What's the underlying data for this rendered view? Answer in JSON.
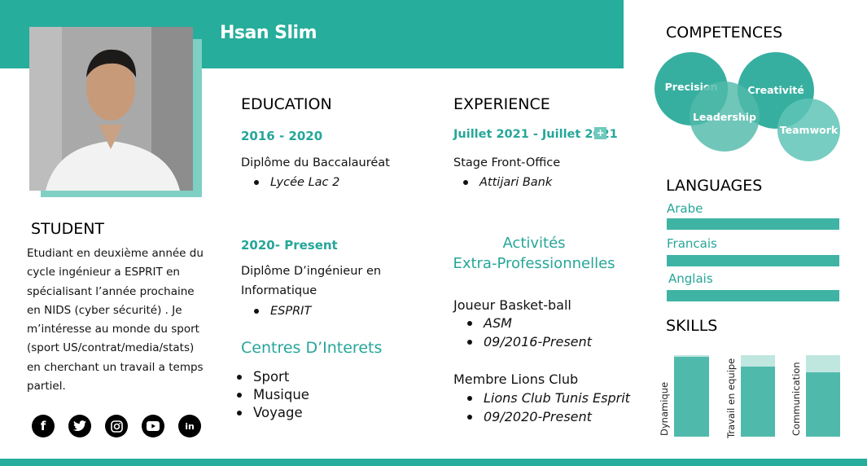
{
  "header": {
    "name": "Hsan Slim"
  },
  "left": {
    "title": "STUDENT",
    "bio": [
      "Etudiant en deuxième année du",
      "cycle ingénieur a ESPRIT en",
      "spécialisant l’année prochaine",
      "en NIDS (cyber sécurité) . Je",
      "m’intéresse au monde du sport",
      "(sport US/contrat/media/stats)",
      "en cherchant un travail a temps",
      "partiel."
    ],
    "social": {
      "facebook": "f",
      "linkedin": "in"
    }
  },
  "education": {
    "title": "EDUCATION",
    "items": [
      {
        "period": "2016 - 2020",
        "degree": [
          "Diplôme du Baccalauréat"
        ],
        "place": "Lycée Lac 2"
      },
      {
        "period": "2020- Present",
        "degree": [
          "Diplôme D’ingénieur en",
          "Informatique"
        ],
        "place": "ESPRIT"
      }
    ]
  },
  "interests": {
    "title": "Centres D’Interets",
    "items": [
      "Sport",
      "Musique",
      "Voyage"
    ]
  },
  "experience": {
    "title": "EXPERIENCE",
    "period": "Juillet 2021 - Juillet 2021",
    "plus_icon": "+",
    "job": "Stage Front-Office",
    "company": "Attijari Bank"
  },
  "activities": {
    "title": [
      "Activités",
      "Extra-Professionnelles"
    ],
    "items": [
      {
        "title": "Joueur  Basket-ball",
        "details": [
          "ASM",
          "09/2016-Present"
        ]
      },
      {
        "title": "Membre Lions Club",
        "details": [
          "Lions Club Tunis Esprit",
          "09/2020-Present"
        ]
      }
    ]
  },
  "competences": {
    "title": "COMPETENCES",
    "items": [
      "Precision",
      "Creativité",
      "Leadership",
      "Teamwork"
    ]
  },
  "languages": {
    "title": "LANGUAGES",
    "items": [
      {
        "name": "Arabe",
        "level": 1.0
      },
      {
        "name": "Francais",
        "level": 1.0
      },
      {
        "name": "Anglais",
        "level": 1.0
      }
    ]
  },
  "skills": {
    "title": "SKILLS",
    "items": [
      {
        "name": "Dynamique",
        "level": 0.98
      },
      {
        "name": "Travail en equipe",
        "level": 0.86
      },
      {
        "name": "Communication",
        "level": 0.79
      }
    ]
  },
  "colors": {
    "accent": "#26ad9b",
    "accent_light": "#bfe6df",
    "bar": "#4fbaac"
  }
}
